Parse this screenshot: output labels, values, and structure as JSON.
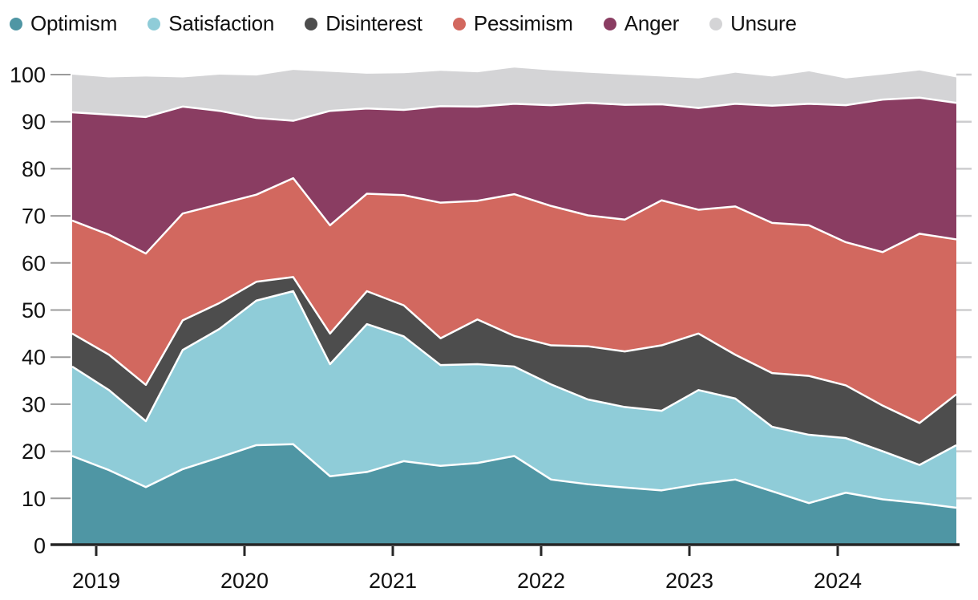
{
  "legend": {
    "items": [
      {
        "label": "Optimism",
        "color": "#4f96a4"
      },
      {
        "label": "Satisfaction",
        "color": "#8fccd8"
      },
      {
        "label": "Disinterest",
        "color": "#4d4d4d"
      },
      {
        "label": "Pessimism",
        "color": "#d2685f"
      },
      {
        "label": "Anger",
        "color": "#8a3d62"
      },
      {
        "label": "Unsure",
        "color": "#d4d4d6"
      }
    ]
  },
  "chart_data": {
    "type": "area",
    "stacked": true,
    "legend_position": "top",
    "grid": false,
    "ylim": [
      0,
      100
    ],
    "y_ticks": [
      0,
      10,
      20,
      30,
      40,
      50,
      60,
      70,
      80,
      90,
      100
    ],
    "x_tick_labels": [
      "2019",
      "2020",
      "2021",
      "2022",
      "2023",
      "2024"
    ],
    "categories": [
      "2018 Q4",
      "2019 Q1",
      "2019 Q2",
      "2019 Q3",
      "2019 Q4",
      "2020 Q1",
      "2020 Q2",
      "2020 Q3",
      "2020 Q4",
      "2021 Q1",
      "2021 Q2",
      "2021 Q3",
      "2021 Q4",
      "2022 Q1",
      "2022 Q2",
      "2022 Q3",
      "2022 Q4",
      "2023 Q1",
      "2023 Q2",
      "2023 Q3",
      "2023 Q4",
      "2024 Q1",
      "2024 Q2",
      "2024 Q3",
      "2024 Q4"
    ],
    "series": [
      {
        "name": "Optimism",
        "color": "#4f96a4",
        "values": [
          19,
          16,
          12.4,
          16.2,
          18.7,
          21.3,
          21.5,
          14.7,
          15.6,
          17.9,
          16.9,
          17.5,
          19,
          14,
          13,
          12.3,
          11.7,
          13,
          14,
          11.5,
          9,
          11.2,
          9.8,
          9,
          8
        ]
      },
      {
        "name": "Satisfaction",
        "color": "#8fccd8",
        "values": [
          19,
          17,
          14,
          25.3,
          27.3,
          30.7,
          32.5,
          23.8,
          31.4,
          26.5,
          21.4,
          21,
          19,
          20.2,
          18,
          17.1,
          16.9,
          20,
          17.2,
          13.7,
          14.5,
          11.6,
          10.2,
          8.1,
          13.3
        ]
      },
      {
        "name": "Disinterest",
        "color": "#4d4d4d",
        "values": [
          7,
          7.5,
          7.7,
          6.3,
          5.5,
          4,
          3,
          6.5,
          7,
          6.6,
          5.7,
          9.5,
          6.5,
          8.3,
          11.3,
          11.8,
          13.9,
          12,
          9.3,
          11.4,
          12.5,
          11.2,
          9.7,
          8.9,
          10.8
        ]
      },
      {
        "name": "Pessimism",
        "color": "#d2685f",
        "values": [
          24,
          25.5,
          27.9,
          22.7,
          21,
          18.5,
          21,
          23,
          20.7,
          23.4,
          28.8,
          25.2,
          30.1,
          29.6,
          27.8,
          28,
          30.8,
          26.3,
          31.5,
          31.9,
          32,
          30.4,
          32.6,
          40.2,
          32.9
        ]
      },
      {
        "name": "Anger",
        "color": "#8a3d62",
        "values": [
          23,
          25.5,
          29,
          22.7,
          19.8,
          16.3,
          12.2,
          24.3,
          18.1,
          18.1,
          20.5,
          20,
          19.2,
          21.4,
          23.9,
          24.4,
          20.4,
          21.6,
          21.8,
          24.9,
          25.8,
          29.1,
          32.4,
          28.9,
          29
        ]
      },
      {
        "name": "Unsure",
        "color": "#d4d4d6",
        "values": [
          8,
          7.9,
          8.6,
          6.2,
          7.7,
          9,
          10.8,
          8.3,
          7.4,
          7.8,
          7.5,
          7.3,
          7.7,
          7.4,
          6.4,
          6.4,
          5.9,
          6.3,
          6.6,
          6.2,
          6.9,
          5.7,
          5.3,
          5.8,
          5.4
        ]
      }
    ]
  }
}
